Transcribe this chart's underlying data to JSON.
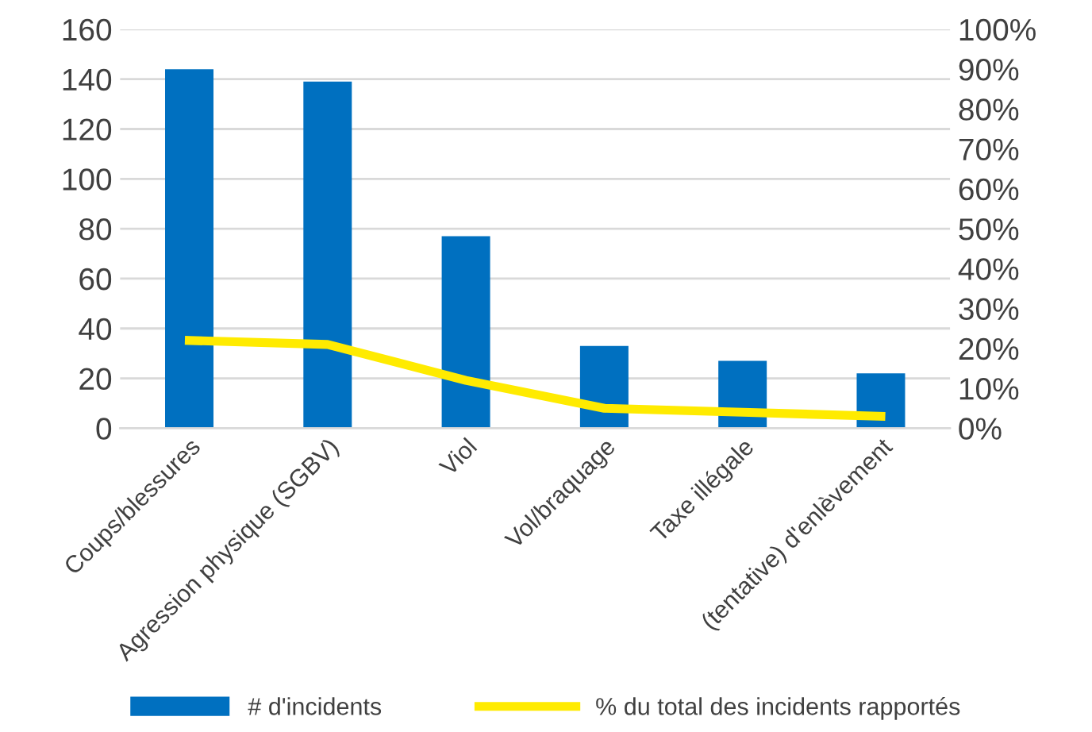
{
  "chart_data": {
    "type": "bar",
    "categories": [
      "Coups/blessures",
      "Agression physique (SGBV)",
      "Viol",
      "Vol/braquage",
      "Taxe illégale",
      "(tentative) d'enlèvement"
    ],
    "series": [
      {
        "name": "# d'incidents",
        "color": "#0070c0",
        "values": [
          144,
          139,
          77,
          33,
          27,
          22
        ]
      },
      {
        "name": "% du total des incidents rapportés",
        "type": "line",
        "axis": "y2",
        "color": "#ffeb00",
        "values": [
          22,
          21,
          12,
          5,
          4,
          3
        ]
      }
    ],
    "ylim": [
      0,
      160
    ],
    "yticks": [
      0,
      20,
      40,
      60,
      80,
      100,
      120,
      140,
      160
    ],
    "y2lim": [
      0,
      100
    ],
    "y2ticks": [
      {
        "value": 0,
        "label": "0%"
      },
      {
        "value": 10,
        "label": "10%"
      },
      {
        "value": 20,
        "label": "20%"
      },
      {
        "value": 30,
        "label": "30%"
      },
      {
        "value": 40,
        "label": "40%"
      },
      {
        "value": 50,
        "label": "50%"
      },
      {
        "value": 60,
        "label": "60%"
      },
      {
        "value": 70,
        "label": "70%"
      },
      {
        "value": 80,
        "label": "80%"
      },
      {
        "value": 90,
        "label": "90%"
      },
      {
        "value": 100,
        "label": "100%"
      }
    ],
    "grid": "y",
    "legend": "bottom",
    "marker": "none",
    "line_style": "solid"
  }
}
